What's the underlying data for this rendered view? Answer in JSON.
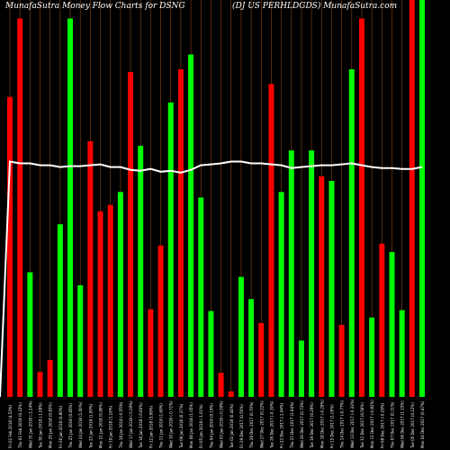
{
  "header": {
    "left": "MunafaSutra  Money Flow  Charts for DSNG",
    "right": "(DJ US PERHLDGDS) MunafaSutra.com"
  },
  "colors": {
    "background": "#000000",
    "up": "#00ff00",
    "down": "#ff0000",
    "grid": "#8b4513",
    "line": "#ffffff",
    "text": "#ffffff"
  },
  "chart_data": {
    "type": "bar",
    "title": "MunafaSutra  Money Flow  Charts for DSNG",
    "subtitle": "(DJ US PERHLDGDS) MunafaSutra.com",
    "grid": true,
    "categories": [
      "Fri 02 Feb 2018 (4.53%)",
      "Thu 01 Feb 2018 (0.22%)",
      "Wed 31 Jan 2018 (-1.24%)",
      "Tue 30 Jan 2018 (-1.09%)",
      "Mon 29 Jan 2018 (0.83%)",
      "Fri 26 Jan 2018 (0.80%)",
      "Thu 25 Jan 2018 (0.85%)",
      "Wed 24 Jan 2018 (1.00%)",
      "Tue 23 Jan 2018 (1.09%)",
      "Mon 22 Jan 2018 (0.80%)",
      "Fri 19 Jan 2018 (1.16%)",
      "Thu 18 Jan 2018 (-0.55%)",
      "Wed 17 Jan 2018 (-0.29%)",
      "Tue 16 Jan 2018 (-0.60%)",
      "Fri 12 Jan 2018 (3.99%)",
      "Thu 11 Jan 2018 (1.60%)",
      "Wed 10 Jan 2018 (-0.71%)",
      "Tue 09 Jan 2018 (0.37%)",
      "Mon 08 Jan 2018 (1.05%)",
      "Fri 05 Jan 2018 (-1.01%)",
      "Thu 04 Jan 2018 (0.19%)",
      "Wed 03 Jan 2018 (-0.39%)",
      "Tue 02 Jan 2018 (0.44%)",
      "Fri 29 Dec 2017 (0.55%)",
      "Thu 28 Dec 2017 (0.70%)",
      "Wed 27 Dec 2017 (0.22%)",
      "Tue 26 Dec 2017 (-0.19%)",
      "Fri 22 Dec 2017 (-1.04%)",
      "Thu 21 Dec 2017 (1.64%)",
      "Wed 20 Dec 2017 (0.73%)",
      "Tue 19 Dec 2017 (0.29%)",
      "Mon 18 Dec 2017 (-0.29%)",
      "Fri 15 Dec 2017 (1.05%)",
      "Thu 14 Dec 2017 (-0.77%)",
      "Wed 13 Dec 2017 (-0.33%)",
      "Tue 12 Dec 2017 (0.56%)",
      "Mon 11 Dec 2017 (-0.82%)",
      "Fri 08 Dec 2017 (-0.29%)",
      "Thu 07 Dec 2017 (0.11%)",
      "Wed 06 Dec 2017 (1.15%)",
      "Tue 05 Dec 2017 (0.12%)",
      "Mon 04 Dec 2017 (0.47%)"
    ],
    "direction": [
      "down",
      "down",
      "up",
      "down",
      "down",
      "up",
      "up",
      "up",
      "down",
      "down",
      "down",
      "up",
      "down",
      "up",
      "down",
      "down",
      "up",
      "down",
      "up",
      "up",
      "up",
      "down",
      "down",
      "up",
      "up",
      "down",
      "down",
      "up",
      "up",
      "up",
      "up",
      "down",
      "up",
      "down",
      "up",
      "down",
      "up",
      "down",
      "up",
      "up",
      "down",
      "up"
    ],
    "values": [
      325,
      410,
      135,
      27,
      40,
      187,
      410,
      121,
      277,
      201,
      208,
      222,
      352,
      272,
      95,
      164,
      319,
      355,
      371,
      216,
      93,
      26,
      6,
      130,
      106,
      80,
      339,
      222,
      267,
      61,
      267,
      239,
      234,
      78,
      355,
      410,
      86,
      166,
      157,
      94,
      430,
      430
    ],
    "flow_line": [
      255,
      253,
      253,
      251,
      251,
      249,
      250,
      250,
      251,
      252,
      249,
      249,
      246,
      245,
      247,
      244,
      245,
      243,
      246,
      251,
      252,
      253,
      255,
      255,
      253,
      253,
      252,
      251,
      248,
      249,
      250,
      251,
      251,
      252,
      253,
      251,
      249,
      248,
      248,
      247,
      247,
      249
    ],
    "ylim": [
      0,
      430
    ]
  }
}
